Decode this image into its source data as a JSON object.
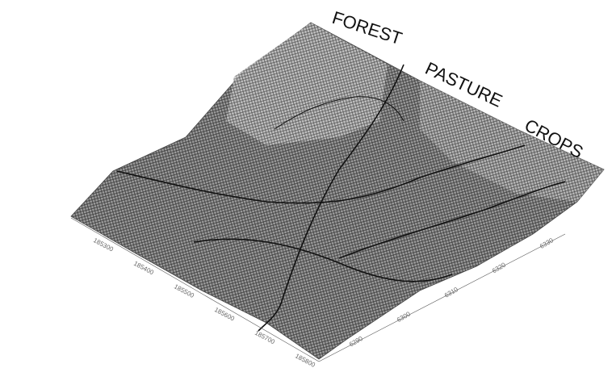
{
  "figure": {
    "zone_labels": [
      "FOREST",
      "PASTURE",
      "CROPS"
    ],
    "left_axis_ticks": [
      "185300",
      "185400",
      "185500",
      "185600",
      "185700",
      "185800"
    ],
    "right_axis_ticks": [
      "6290",
      "6300",
      "6310",
      "6320",
      "6330"
    ]
  }
}
